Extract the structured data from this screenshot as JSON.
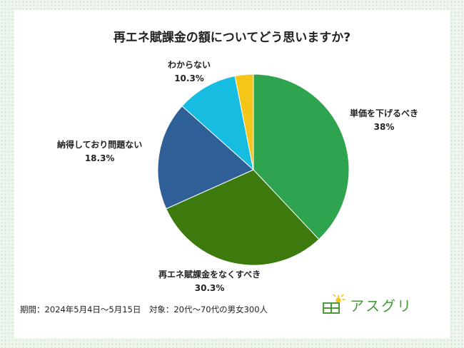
{
  "chart_data": {
    "type": "pie",
    "title": "再エネ賦課金の額についてどう思いますか?",
    "slices": [
      {
        "label": "単価を下げるべき",
        "value_text": "38%",
        "value": 38,
        "color": "#2ea44f"
      },
      {
        "label": "再エネ賦課金をなくすべき",
        "value_text": "30.3%",
        "value": 30.3,
        "color": "#3d7a0e"
      },
      {
        "label": "納得しており問題ない",
        "value_text": "18.3%",
        "value": 18.3,
        "color": "#2e5f96"
      },
      {
        "label": "わからない",
        "value_text": "10.3%",
        "value": 10.3,
        "color": "#17bde0"
      },
      {
        "label": "",
        "value_text": "",
        "value": 3.1,
        "color": "#f5c518"
      }
    ]
  },
  "footer": "期間：2024年5月4日〜5月15日　対象：20代〜70代の男女300人",
  "logo": {
    "text": "アスグリ",
    "icon": "solar-panel-sun-icon",
    "color": "#4a9a3c"
  }
}
